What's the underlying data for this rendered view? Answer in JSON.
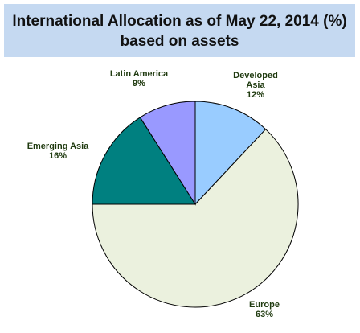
{
  "title": {
    "line1": "International Allocation as of May 22, 2014 (%)",
    "line2": "based on assets"
  },
  "colors": {
    "title_bg": "#c5d9f1",
    "label_text": "#1f3a0f",
    "slice_outline": "#000000"
  },
  "chart_data": {
    "type": "pie",
    "title": "International Allocation as of May 22, 2014 (%) based on assets",
    "start": "12 o'clock",
    "direction": "clockwise",
    "slices": [
      {
        "label": "Developed Asia",
        "label_lines": [
          "Developed",
          "Asia"
        ],
        "value": 12,
        "value_label": "12%",
        "color": "#99ccff"
      },
      {
        "label": "Europe",
        "label_lines": [
          "Europe"
        ],
        "value": 63,
        "value_label": "63%",
        "color": "#ebf1de"
      },
      {
        "label": "Emerging Asia",
        "label_lines": [
          "Emerging Asia"
        ],
        "value": 16,
        "value_label": "16%",
        "color": "#008080"
      },
      {
        "label": "Latin America",
        "label_lines": [
          "Latin America"
        ],
        "value": 9,
        "value_label": "9%",
        "color": "#9999ff"
      }
    ]
  }
}
